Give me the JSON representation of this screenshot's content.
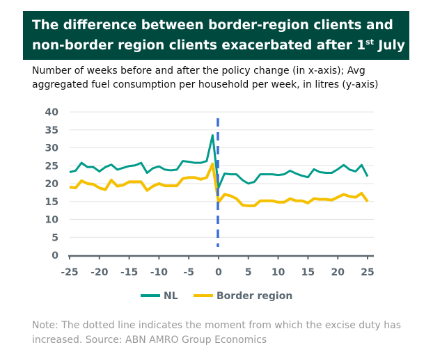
{
  "header": {
    "title_part1": "The difference between border-region clients and non-border region clients exacerbated after 1",
    "title_sup": "st",
    "title_part2": " July",
    "subtitle": "Number of weeks before and after the policy change (in x-axis); Avg aggregated fuel consumption per household per week, in litres (y-axis)"
  },
  "footer": {
    "note": "Note: The dotted line indicates the moment from which the excise duty has increased. Source: ABN AMRO Group Economics"
  },
  "chart_data": {
    "type": "line",
    "title": "",
    "xlabel": "",
    "ylabel": "",
    "xlim": [
      -25,
      25
    ],
    "ylim": [
      0,
      40
    ],
    "xticks": [
      "-25",
      "-20",
      "-15",
      "-10",
      "-5",
      "0",
      "5",
      "10",
      "15",
      "20",
      "25"
    ],
    "yticks": [
      "0",
      "5",
      "10",
      "15",
      "20",
      "25",
      "30",
      "35",
      "40"
    ],
    "grid": true,
    "legend": "bottom",
    "vline": {
      "x": 0,
      "style": "dashed",
      "color": "#3a6fd8"
    },
    "x": [
      -25,
      -24,
      -23,
      -22,
      -21,
      -20,
      -19,
      -18,
      -17,
      -16,
      -15,
      -14,
      -13,
      -12,
      -11,
      -10,
      -9,
      -8,
      -7,
      -6,
      -5,
      -4,
      -3,
      -2,
      -1,
      0,
      1,
      2,
      3,
      4,
      5,
      6,
      7,
      8,
      9,
      10,
      11,
      12,
      13,
      14,
      15,
      16,
      17,
      18,
      19,
      20,
      21,
      22,
      23,
      24,
      25
    ],
    "series": [
      {
        "name": "NL",
        "color": "#009b8a",
        "values": [
          23.2,
          23.6,
          25.8,
          24.6,
          24.6,
          23.4,
          24.6,
          25.3,
          23.9,
          24.4,
          24.9,
          25.1,
          25.8,
          23.0,
          24.3,
          24.8,
          23.9,
          23.7,
          23.9,
          26.3,
          26.1,
          25.8,
          25.8,
          26.3,
          33.5,
          18.9,
          22.8,
          22.6,
          22.6,
          21.0,
          20.0,
          20.5,
          22.6,
          22.6,
          22.6,
          22.4,
          22.6,
          23.6,
          22.8,
          22.2,
          21.8,
          24.0,
          23.2,
          23.0,
          23.0,
          24.0,
          25.2,
          23.9,
          23.4,
          25.2,
          22.0
        ]
      },
      {
        "name": "Border region",
        "color": "#f5c000",
        "values": [
          19.0,
          18.8,
          20.8,
          20.0,
          19.8,
          18.8,
          18.3,
          21.0,
          19.3,
          19.6,
          20.5,
          20.5,
          20.5,
          18.1,
          19.3,
          20.0,
          19.4,
          19.4,
          19.4,
          21.4,
          21.7,
          21.7,
          21.2,
          21.7,
          25.5,
          14.8,
          17.0,
          16.6,
          15.8,
          14.0,
          13.8,
          13.8,
          15.2,
          15.2,
          15.2,
          14.8,
          14.8,
          15.8,
          15.2,
          15.2,
          14.6,
          15.8,
          15.6,
          15.6,
          15.4,
          16.2,
          17.0,
          16.4,
          16.2,
          17.3,
          15.0
        ]
      }
    ]
  }
}
